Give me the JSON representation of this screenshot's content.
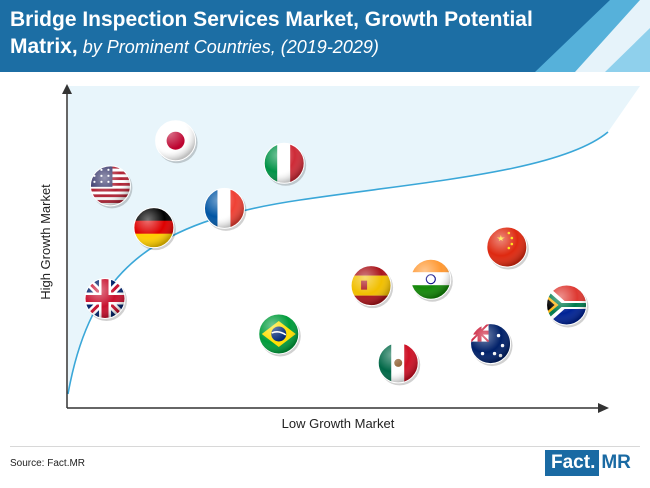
{
  "title": {
    "main": "Bridge Inspection Services Market, Growth Potential Matrix,",
    "sub": " by Prominent Countries, (2019-2029)"
  },
  "source": "Source: Fact.MR",
  "logo": {
    "fact": "Fact.",
    "mr": "MR"
  },
  "colors": {
    "header": "#1c6ea4",
    "header_light": "#5db8e0",
    "curve": "#3aa7d8",
    "area": "#e8f5fb",
    "axis": "#333333"
  },
  "chart_data": {
    "type": "scatter",
    "xlabel": "Low Growth Market",
    "ylabel": "High Growth Market",
    "points": [
      {
        "flag": "usa",
        "x": 0.08,
        "y": 0.69
      },
      {
        "flag": "japan",
        "x": 0.2,
        "y": 0.83
      },
      {
        "flag": "germany",
        "x": 0.16,
        "y": 0.56
      },
      {
        "flag": "france",
        "x": 0.29,
        "y": 0.62
      },
      {
        "flag": "italy",
        "x": 0.4,
        "y": 0.76
      },
      {
        "flag": "uk",
        "x": 0.07,
        "y": 0.34
      },
      {
        "flag": "brazil",
        "x": 0.39,
        "y": 0.23
      },
      {
        "flag": "spain",
        "x": 0.56,
        "y": 0.38
      },
      {
        "flag": "india",
        "x": 0.67,
        "y": 0.4
      },
      {
        "flag": "china",
        "x": 0.81,
        "y": 0.5
      },
      {
        "flag": "south-africa",
        "x": 0.92,
        "y": 0.32
      },
      {
        "flag": "australia",
        "x": 0.78,
        "y": 0.2
      },
      {
        "flag": "mexico",
        "x": 0.61,
        "y": 0.14
      }
    ]
  }
}
